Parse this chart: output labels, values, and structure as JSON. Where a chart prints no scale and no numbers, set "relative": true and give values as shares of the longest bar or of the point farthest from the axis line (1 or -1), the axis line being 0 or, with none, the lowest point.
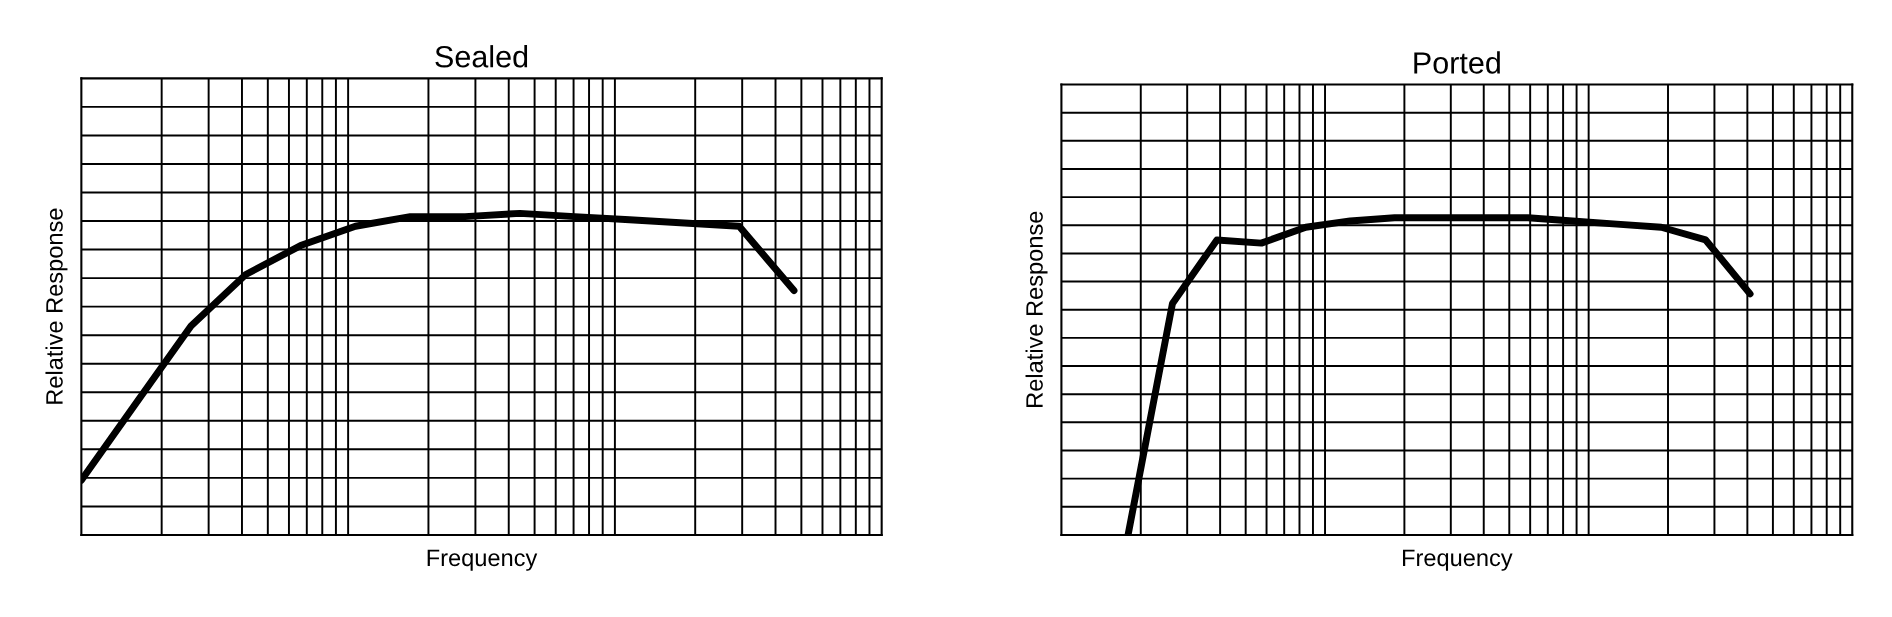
{
  "chart_data": [
    {
      "type": "line",
      "title": "Sealed",
      "xlabel": "Frequency",
      "ylabel": "Relative Response",
      "relative": true,
      "grid": true,
      "legend": false,
      "categories": [
        null,
        null,
        null,
        null,
        null,
        null,
        null,
        null,
        null,
        null,
        null,
        null,
        null,
        null
      ],
      "series": [
        {
          "color": "#000000",
          "values": [
            0.17,
            0.41,
            0.65,
            0.81,
            0.9,
            0.96,
            0.99,
            0.99,
            1.0,
            0.99,
            0.98,
            0.97,
            0.96,
            0.76
          ]
        }
      ]
    },
    {
      "type": "line",
      "title": "Ported",
      "xlabel": "Frequency",
      "ylabel": "Relative Response",
      "relative": true,
      "grid": true,
      "legend": false,
      "categories": [
        null,
        null,
        null,
        null,
        null,
        null,
        null,
        null,
        null,
        null,
        null,
        null,
        null,
        null,
        null
      ],
      "series": [
        {
          "color": "#000000",
          "values": [
            0,
            0.73,
            0.93,
            0.92,
            0.97,
            0.99,
            1.0,
            1.0,
            1.0,
            1.0,
            0.99,
            0.98,
            0.97,
            0.93,
            0.76
          ]
        }
      ]
    }
  ]
}
